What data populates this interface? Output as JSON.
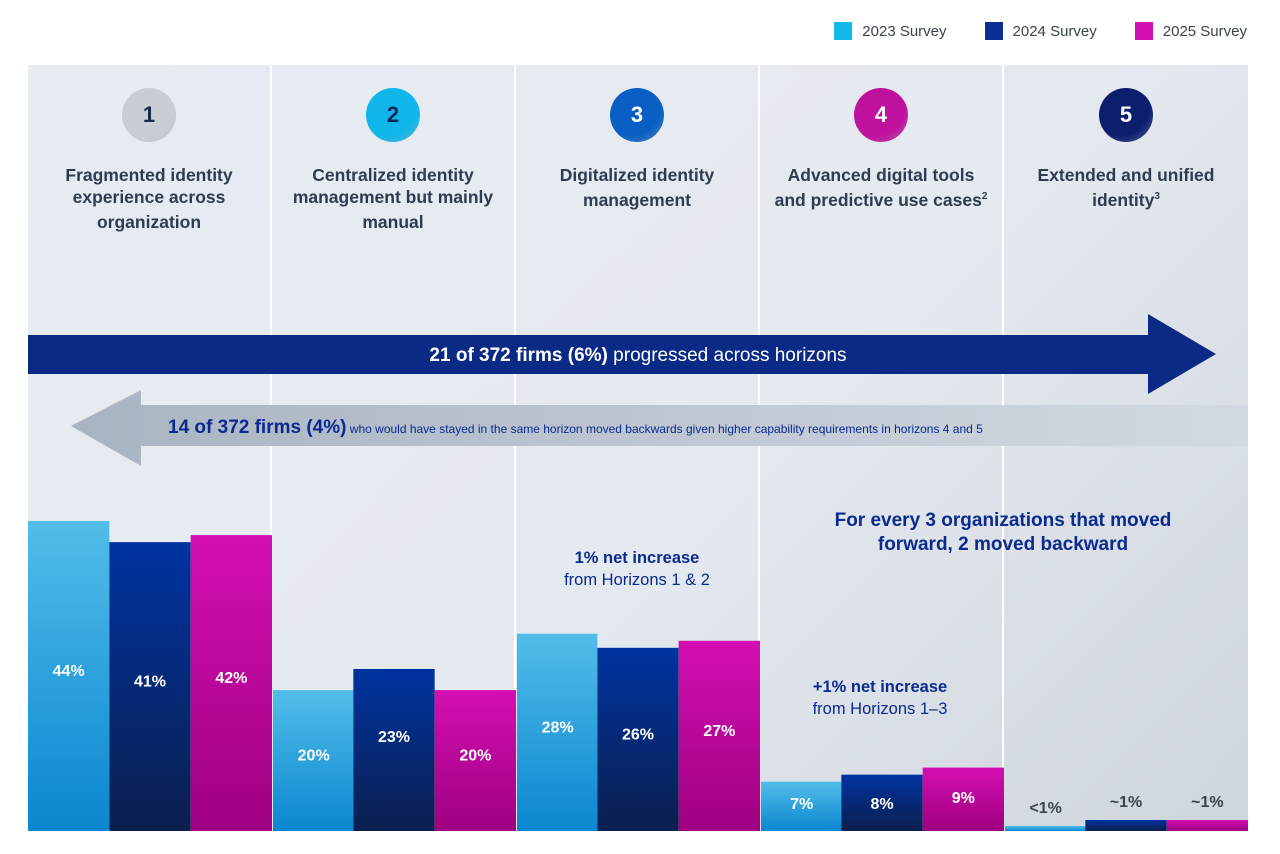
{
  "legend": [
    {
      "label": "2023 Survey",
      "color": "#12b8e8"
    },
    {
      "label": "2024 Survey",
      "color": "#0b2f94"
    },
    {
      "label": "2025 Survey",
      "color": "#d20fb0"
    }
  ],
  "horizons": [
    {
      "number": "1",
      "title": "Fragmented identity experience across organization",
      "sup": "",
      "badge_bg": "#c9ced6",
      "badge_fg": "#1b2a4a"
    },
    {
      "number": "2",
      "title": "Centralized identity management but mainly manual",
      "sup": "",
      "badge_bg": "#10b6ea",
      "badge_fg": "#0d2456"
    },
    {
      "number": "3",
      "title": "Digitalized identity management",
      "sup": "",
      "badge_bg": "#0a5fc4",
      "badge_fg": "#ffffff"
    },
    {
      "number": "4",
      "title": "Advanced digital tools and predictive use cases",
      "sup": "2",
      "badge_bg": "#c0109e",
      "badge_fg": "#ffffff"
    },
    {
      "number": "5",
      "title": "Extended and unified identity",
      "sup": "3",
      "badge_bg": "#0c1f6e",
      "badge_fg": "#ffffff"
    }
  ],
  "forward_arrow": {
    "bold": "21 of 372 firms (6%)",
    "rest": " progressed across horizons",
    "color": "#0b2a86"
  },
  "backward_arrow": {
    "bold": "14 of 372 firms (4%)",
    "rest": " who would have stayed in the same horizon moved backwards given higher capability requirements in horizons 4 and 5",
    "color": "#b7c1cd"
  },
  "annotations": {
    "h3": {
      "bold": "1% net increase",
      "rest": "from Horizons 1 & 2"
    },
    "h4": {
      "bold": "+1% net increase",
      "rest": "from Horizons 1–3"
    },
    "callout": {
      "line1": "For every 3 organizations that moved",
      "line2": "forward, 2 moved backward"
    }
  },
  "chart_data": {
    "type": "bar",
    "title": "",
    "xlabel": "",
    "ylabel": "",
    "categories": [
      "Horizon 1",
      "Horizon 2",
      "Horizon 3",
      "Horizon 4",
      "Horizon 5"
    ],
    "series": [
      {
        "name": "2023 Survey",
        "values": [
          44,
          20,
          28,
          7,
          0.5
        ],
        "labels": [
          "44%",
          "20%",
          "28%",
          "7%",
          "<1%"
        ]
      },
      {
        "name": "2024 Survey",
        "values": [
          41,
          23,
          26,
          8,
          1
        ],
        "labels": [
          "41%",
          "23%",
          "26%",
          "8%",
          "~1%"
        ]
      },
      {
        "name": "2025 Survey",
        "values": [
          42,
          20,
          27,
          9,
          1
        ],
        "labels": [
          "42%",
          "20%",
          "27%",
          "9%",
          "~1%"
        ]
      }
    ],
    "ylim": [
      0,
      44
    ],
    "grid": false,
    "legend": "top-right"
  }
}
